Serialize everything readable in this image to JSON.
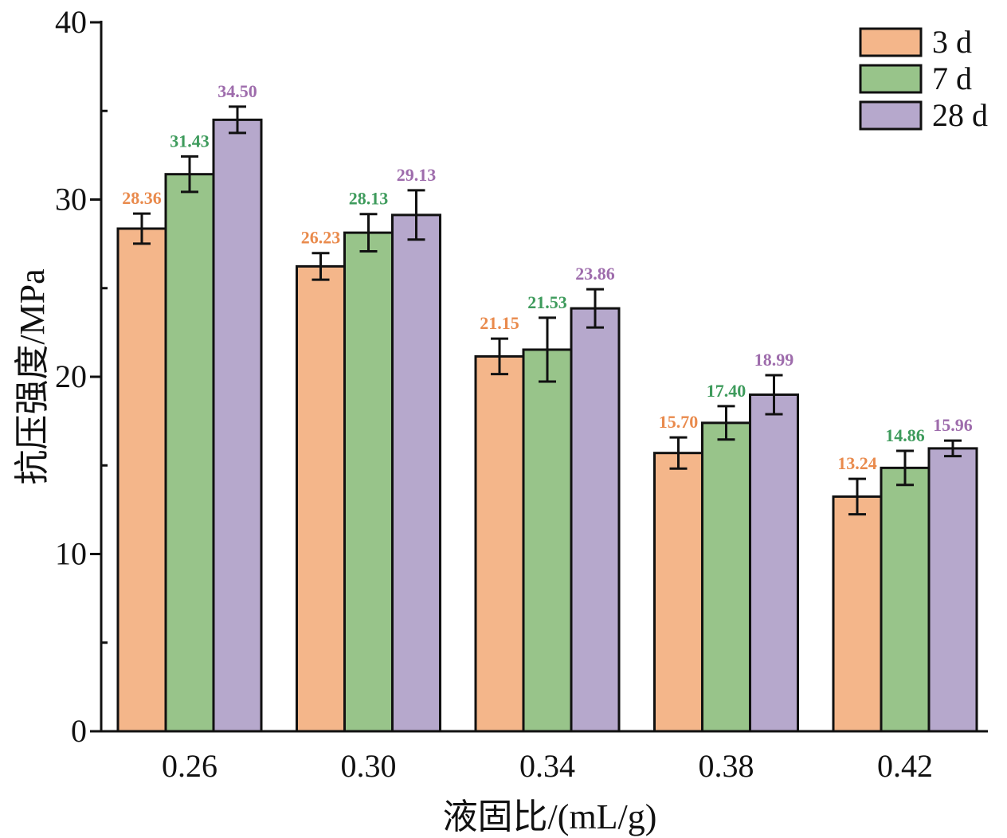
{
  "chart_data": {
    "type": "bar",
    "xlabel": "液固比/(mL/g)",
    "ylabel": "抗压强度/MPa",
    "categories": [
      "0.26",
      "0.30",
      "0.34",
      "0.38",
      "0.42"
    ],
    "ylim": [
      0,
      40
    ],
    "yticks": [
      "0",
      "10",
      "20",
      "30",
      "40"
    ],
    "grid": false,
    "legend_position": "top-right",
    "series": [
      {
        "name": "3 d",
        "color": "#F4B68A",
        "label_color": "#E98A4C",
        "values": [
          28.36,
          26.23,
          21.15,
          15.7,
          13.24
        ],
        "labels": [
          "28.36",
          "26.23",
          "21.15",
          "15.70",
          "13.24"
        ],
        "errors": [
          0.85,
          0.75,
          1.0,
          0.88,
          1.0
        ]
      },
      {
        "name": "7 d",
        "color": "#98C48A",
        "label_color": "#3E9B5C",
        "values": [
          31.43,
          28.13,
          21.53,
          17.4,
          14.86
        ],
        "labels": [
          "31.43",
          "28.13",
          "21.53",
          "17.40",
          "14.86"
        ],
        "errors": [
          1.0,
          1.05,
          1.8,
          0.94,
          0.96
        ]
      },
      {
        "name": "28 d",
        "color": "#B6A8CC",
        "label_color": "#9E6CAC",
        "values": [
          34.5,
          29.13,
          23.86,
          18.99,
          15.96
        ],
        "labels": [
          "34.50",
          "29.13",
          "23.86",
          "18.99",
          "15.96"
        ],
        "errors": [
          0.74,
          1.39,
          1.08,
          1.1,
          0.44
        ]
      }
    ]
  }
}
